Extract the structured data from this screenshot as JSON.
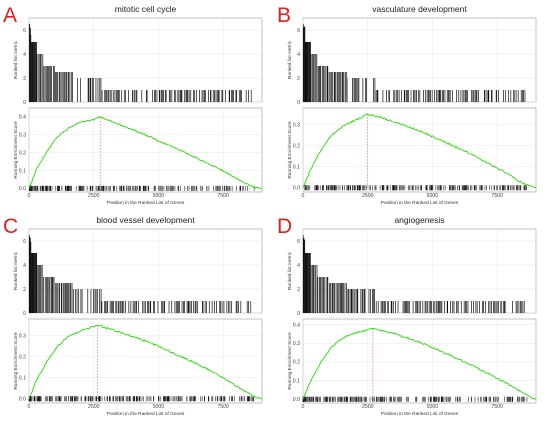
{
  "figure": {
    "letter_color": "#e0201c",
    "es_color": "#22dd00",
    "marker_color": "#e05050"
  },
  "chart_data": [
    {
      "type": "line",
      "panel_label": "A",
      "title": "mitotic cell cycle",
      "top_ylabel": "Ranked list metric",
      "ylabel": "Running Enrichment Score",
      "xlabel": "Position in the Ranked List of Genes",
      "x_ticks": [
        "0",
        "2500",
        "5000",
        "7500"
      ],
      "xlim": [
        0,
        9000
      ],
      "metric_ticks": [
        "0",
        "2",
        "4",
        "6"
      ],
      "metric_ylim": [
        0,
        7
      ],
      "es_ticks": [
        "0.0",
        "0.1",
        "0.2",
        "0.3",
        "0.4"
      ],
      "es_ylim": [
        -0.02,
        0.45
      ],
      "peak_position": 2750,
      "peak_es": 0.4,
      "es_curve": {
        "x": [
          0,
          300,
          700,
          1100,
          1600,
          2100,
          2500,
          2750,
          3200,
          3800,
          4500,
          5200,
          5900,
          6600,
          7300,
          7900,
          8400,
          8700,
          9000
        ],
        "y": [
          0.0,
          0.11,
          0.21,
          0.29,
          0.345,
          0.375,
          0.385,
          0.4,
          0.375,
          0.34,
          0.3,
          0.255,
          0.21,
          0.16,
          0.115,
          0.065,
          0.025,
          0.005,
          0.0
        ]
      },
      "rank_metric_steps": {
        "x_end": [
          80,
          300,
          550,
          1000,
          1700,
          2800,
          8600
        ],
        "value": [
          6.5,
          5,
          4,
          3,
          2.5,
          2,
          1
        ]
      }
    },
    {
      "type": "line",
      "panel_label": "B",
      "title": "vasculature development",
      "top_ylabel": "Ranked list metric",
      "ylabel": "Running Enrichment Score",
      "xlabel": "Position in the Ranked List of Genes",
      "x_ticks": [
        "0",
        "2500",
        "5000",
        "7500"
      ],
      "xlim": [
        0,
        9000
      ],
      "metric_ticks": [
        "0",
        "2",
        "4",
        "6"
      ],
      "metric_ylim": [
        0,
        7
      ],
      "es_ticks": [
        "0.0",
        "0.1",
        "0.2",
        "0.3"
      ],
      "es_ylim": [
        -0.02,
        0.38
      ],
      "peak_position": 2500,
      "peak_es": 0.35,
      "es_curve": {
        "x": [
          0,
          300,
          700,
          1100,
          1500,
          2000,
          2500,
          3000,
          3600,
          4300,
          5000,
          5700,
          6400,
          7100,
          7800,
          8300,
          8700,
          9000
        ],
        "y": [
          0.0,
          0.09,
          0.18,
          0.25,
          0.29,
          0.32,
          0.35,
          0.335,
          0.31,
          0.28,
          0.245,
          0.205,
          0.165,
          0.12,
          0.075,
          0.035,
          0.01,
          0.0
        ]
      },
      "rank_metric_steps": {
        "x_end": [
          80,
          300,
          550,
          1000,
          1700,
          2800,
          8600
        ],
        "value": [
          6.5,
          5,
          4,
          3,
          2.5,
          2,
          1
        ]
      }
    },
    {
      "type": "line",
      "panel_label": "C",
      "title": "blood vessel development",
      "top_ylabel": "Ranked list metric",
      "ylabel": "Running Enrichment Score",
      "xlabel": "Position in the Ranked List of Genes",
      "x_ticks": [
        "0",
        "2500",
        "5000",
        "7500"
      ],
      "xlim": [
        0,
        9000
      ],
      "metric_ticks": [
        "0",
        "2",
        "4",
        "6"
      ],
      "metric_ylim": [
        0,
        7
      ],
      "es_ticks": [
        "0.0",
        "0.1",
        "0.2",
        "0.3"
      ],
      "es_ylim": [
        -0.02,
        0.38
      ],
      "peak_position": 2650,
      "peak_es": 0.35,
      "es_curve": {
        "x": [
          0,
          300,
          700,
          1100,
          1500,
          2000,
          2650,
          3200,
          3800,
          4500,
          5200,
          5900,
          6600,
          7300,
          7900,
          8400,
          8700,
          9000
        ],
        "y": [
          0.0,
          0.09,
          0.18,
          0.25,
          0.295,
          0.325,
          0.35,
          0.33,
          0.305,
          0.275,
          0.24,
          0.2,
          0.16,
          0.115,
          0.07,
          0.03,
          0.01,
          0.0
        ]
      },
      "rank_metric_steps": {
        "x_end": [
          80,
          300,
          550,
          1000,
          1700,
          2800,
          8600
        ],
        "value": [
          6.5,
          5,
          4,
          3,
          2.5,
          2,
          1
        ]
      }
    },
    {
      "type": "line",
      "panel_label": "D",
      "title": "angiogenesis",
      "top_ylabel": "Ranked list metric",
      "ylabel": "Running Enrichment Score",
      "xlabel": "Position in the Ranked List of Genes",
      "x_ticks": [
        "0",
        "2500",
        "5000",
        "7500"
      ],
      "xlim": [
        0,
        9000
      ],
      "metric_ticks": [
        "0",
        "2",
        "4",
        "6"
      ],
      "metric_ylim": [
        0,
        7
      ],
      "es_ticks": [
        "0.0",
        "0.1",
        "0.2",
        "0.3",
        "0.4"
      ],
      "es_ylim": [
        -0.02,
        0.43
      ],
      "peak_position": 2700,
      "peak_es": 0.38,
      "es_curve": {
        "x": [
          0,
          300,
          700,
          1100,
          1500,
          2000,
          2700,
          3300,
          3900,
          4600,
          5300,
          6000,
          6700,
          7400,
          8000,
          8500,
          8800,
          9000
        ],
        "y": [
          0.0,
          0.1,
          0.2,
          0.28,
          0.325,
          0.355,
          0.38,
          0.36,
          0.335,
          0.3,
          0.26,
          0.215,
          0.17,
          0.12,
          0.075,
          0.035,
          0.01,
          0.0
        ]
      },
      "rank_metric_steps": {
        "x_end": [
          80,
          300,
          550,
          1000,
          1700,
          2800,
          8600
        ],
        "value": [
          6.5,
          5,
          4,
          3,
          2.5,
          2,
          1
        ]
      }
    }
  ]
}
